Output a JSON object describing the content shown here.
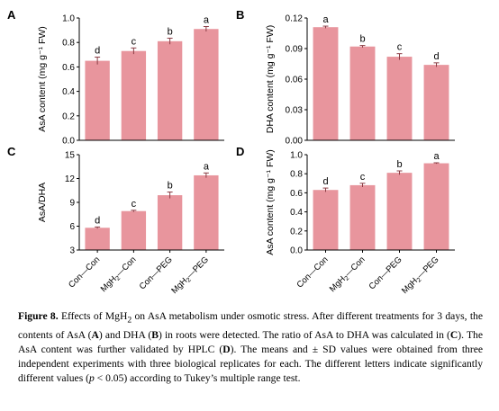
{
  "colors": {
    "bar": "#e8959d",
    "error": "#8a3c44",
    "axis": "#000000"
  },
  "chart_data": [
    {
      "panel": "A",
      "type": "bar",
      "ylabel": "AsA content (mg g⁻¹ FW)",
      "categories": [
        "Con—Con",
        "MgH₂—Con",
        "Con—PEG",
        "MgH₂—PEG"
      ],
      "values": [
        0.65,
        0.73,
        0.81,
        0.91
      ],
      "errors": [
        0.03,
        0.025,
        0.025,
        0.02
      ],
      "letters": [
        "d",
        "c",
        "b",
        "a"
      ],
      "ylim": [
        0.0,
        1.0
      ],
      "yticks": [
        0.0,
        0.2,
        0.4,
        0.6,
        0.8,
        1.0
      ],
      "ytick_labels": [
        "0.0",
        "0.2",
        "0.4",
        "0.6",
        "0.8",
        "1.0"
      ],
      "show_xticklabels": false,
      "grid": false
    },
    {
      "panel": "B",
      "type": "bar",
      "ylabel": "DHA content (mg g⁻¹ FW)",
      "categories": [
        "Con—Con",
        "MgH₂—Con",
        "Con—PEG",
        "MgH₂—PEG"
      ],
      "values": [
        0.111,
        0.092,
        0.082,
        0.074
      ],
      "errors": [
        0.001,
        0.001,
        0.003,
        0.002
      ],
      "letters": [
        "a",
        "b",
        "c",
        "d"
      ],
      "ylim": [
        0.0,
        0.12
      ],
      "yticks": [
        0.0,
        0.03,
        0.06,
        0.09,
        0.12
      ],
      "ytick_labels": [
        "0.00",
        "0.03",
        "0.06",
        "0.09",
        "0.12"
      ],
      "show_xticklabels": false,
      "grid": false
    },
    {
      "panel": "C",
      "type": "bar",
      "ylabel": "AsA/DHA",
      "categories": [
        "Con—Con",
        "MgH₂—Con",
        "Con—PEG",
        "MgH₂—PEG"
      ],
      "values": [
        5.8,
        7.9,
        9.9,
        12.4
      ],
      "errors": [
        0.1,
        0.1,
        0.4,
        0.3
      ],
      "letters": [
        "d",
        "c",
        "b",
        "a"
      ],
      "ylim": [
        3,
        15
      ],
      "yticks": [
        3,
        6,
        9,
        12,
        15
      ],
      "ytick_labels": [
        "3",
        "6",
        "9",
        "12",
        "15"
      ],
      "show_xticklabels": true,
      "grid": false
    },
    {
      "panel": "D",
      "type": "bar",
      "ylabel": "AsA content (mg g⁻¹ FW)",
      "categories": [
        "Con—Con",
        "MgH₂—Con",
        "Con—PEG",
        "MgH₂—PEG"
      ],
      "values": [
        0.63,
        0.68,
        0.81,
        0.91
      ],
      "errors": [
        0.02,
        0.02,
        0.02,
        0.005
      ],
      "letters": [
        "d",
        "c",
        "b",
        "a"
      ],
      "ylim": [
        0.0,
        1.0
      ],
      "yticks": [
        0.0,
        0.2,
        0.4,
        0.6,
        0.8,
        1.0
      ],
      "ytick_labels": [
        "0.0",
        "0.2",
        "0.4",
        "0.6",
        "0.8",
        "1.0"
      ],
      "show_xticklabels": true,
      "grid": false
    }
  ],
  "caption": {
    "label": "Figure 8.",
    "t1": " Effects of MgH",
    "sub2": "2",
    "t2": " on AsA metabolism under osmotic stress. After different treatments for 3 days, the contents of AsA (",
    "A": "A",
    "t3": ") and DHA (",
    "B": "B",
    "t4": ") in roots were detected. The ratio of AsA to DHA was calculated in (",
    "C": "C",
    "t5": "). The AsA content was further validated by HPLC (",
    "D": "D",
    "t6": "). The means and ± SD values were obtained from three independent experiments with three biological replicates for each. The different letters indicate significantly different values (",
    "p": "p",
    "t7": " < 0.05) according to Tukey’s multiple range test."
  }
}
